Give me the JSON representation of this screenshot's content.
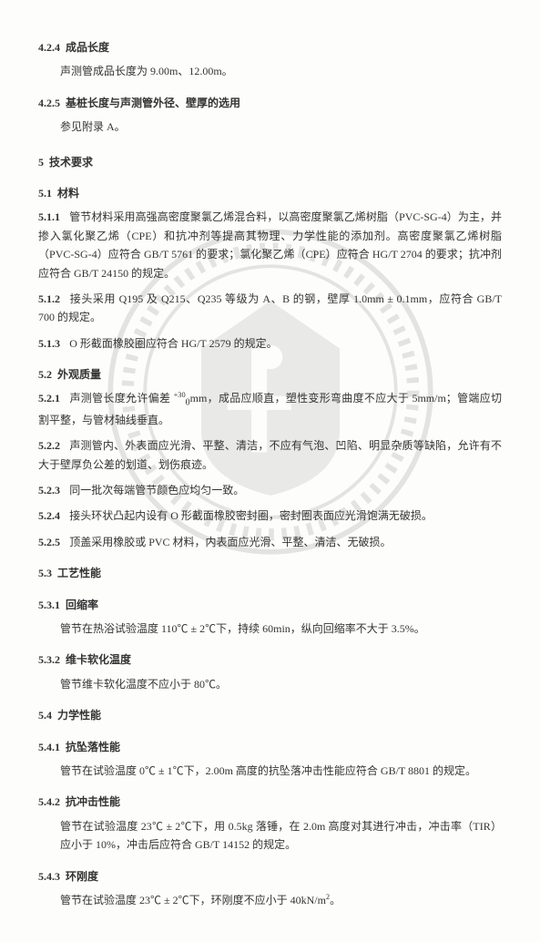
{
  "sections": {
    "s424": {
      "num": "4.2.4",
      "title": "成品长度",
      "body": "声测管成品长度为 9.00m、12.00m。"
    },
    "s425": {
      "num": "4.2.5",
      "title": "基桩长度与声测管外径、壁厚的选用",
      "body": "参见附录 A。"
    },
    "s5": {
      "num": "5",
      "title": "技术要求"
    },
    "s51": {
      "num": "5.1",
      "title": "材料"
    },
    "s511": {
      "num": "5.1.1",
      "body": "管节材料采用高强高密度聚氯乙烯混合料，以高密度聚氯乙烯树脂（PVC-SG-4）为主，并掺入氯化聚乙烯（CPE）和抗冲剂等提高其物理、力学性能的添加剂。高密度聚氯乙烯树脂（PVC-SG-4）应符合 GB/T 5761 的要求；氯化聚乙烯（CPE）应符合 HG/T 2704 的要求；抗冲剂应符合 GB/T 24150 的规定。"
    },
    "s512": {
      "num": "5.1.2",
      "body": "接头采用 Q195 及 Q215、Q235 等级为 A、B 的钢，壁厚 1.0mm ± 0.1mm，应符合 GB/T 700 的规定。"
    },
    "s513": {
      "num": "5.1.3",
      "body": "O 形截面橡胶圈应符合 HG/T 2579 的规定。"
    },
    "s52": {
      "num": "5.2",
      "title": "外观质量"
    },
    "s521": {
      "num": "5.2.1",
      "body_html": "声测管长度允许偏差 <sup>+30</sup><sub>0</sub>mm，成品应顺直，塑性变形弯曲度不应大于 5mm/m；管端应切割平整，与管材轴线垂直。"
    },
    "s522": {
      "num": "5.2.2",
      "body": "声测管内、外表面应光滑、平整、清洁，不应有气泡、凹陷、明显杂质等缺陷，允许有不大于壁厚负公差的划道、划伤痕迹。"
    },
    "s523": {
      "num": "5.2.3",
      "body": "同一批次每端管节颜色应均匀一致。"
    },
    "s524": {
      "num": "5.2.4",
      "body": "接头环状凸起内设有 O 形截面橡胶密封圈，密封圈表面应光滑饱满无破损。"
    },
    "s525": {
      "num": "5.2.5",
      "body": "顶盖采用橡胶或 PVC 材料，内表面应光滑、平整、清洁、无破损。"
    },
    "s53": {
      "num": "5.3",
      "title": "工艺性能"
    },
    "s531": {
      "num": "5.3.1",
      "title": "回缩率",
      "body": "管节在热浴试验温度 110℃ ± 2℃下，持续 60min，纵向回缩率不大于 3.5%。"
    },
    "s532": {
      "num": "5.3.2",
      "title": "维卡软化温度",
      "body": "管节维卡软化温度不应小于 80℃。"
    },
    "s54": {
      "num": "5.4",
      "title": "力学性能"
    },
    "s541": {
      "num": "5.4.1",
      "title": "抗坠落性能",
      "body": "管节在试验温度 0℃ ± 1℃下，2.00m 高度的抗坠落冲击性能应符合 GB/T 8801 的规定。"
    },
    "s542": {
      "num": "5.4.2",
      "title": "抗冲击性能",
      "body": "管节在试验温度 23℃ ± 2℃下，用 0.5kg 落锤，在 2.0m 高度对其进行冲击，冲击率（TIR）应小于 10%，冲击后应符合 GB/T 14152 的规定。"
    },
    "s543": {
      "num": "5.4.3",
      "title": "环刚度",
      "body_html": "管节在试验温度 23℃ ± 2℃下，环刚度不应小于 40kN/m<sup>2</sup>。"
    }
  },
  "watermark": {
    "ring_outer_r": 185,
    "ring_inner_r": 145,
    "ring_stroke": "#3a3a3a",
    "center_fill": "#555555"
  }
}
